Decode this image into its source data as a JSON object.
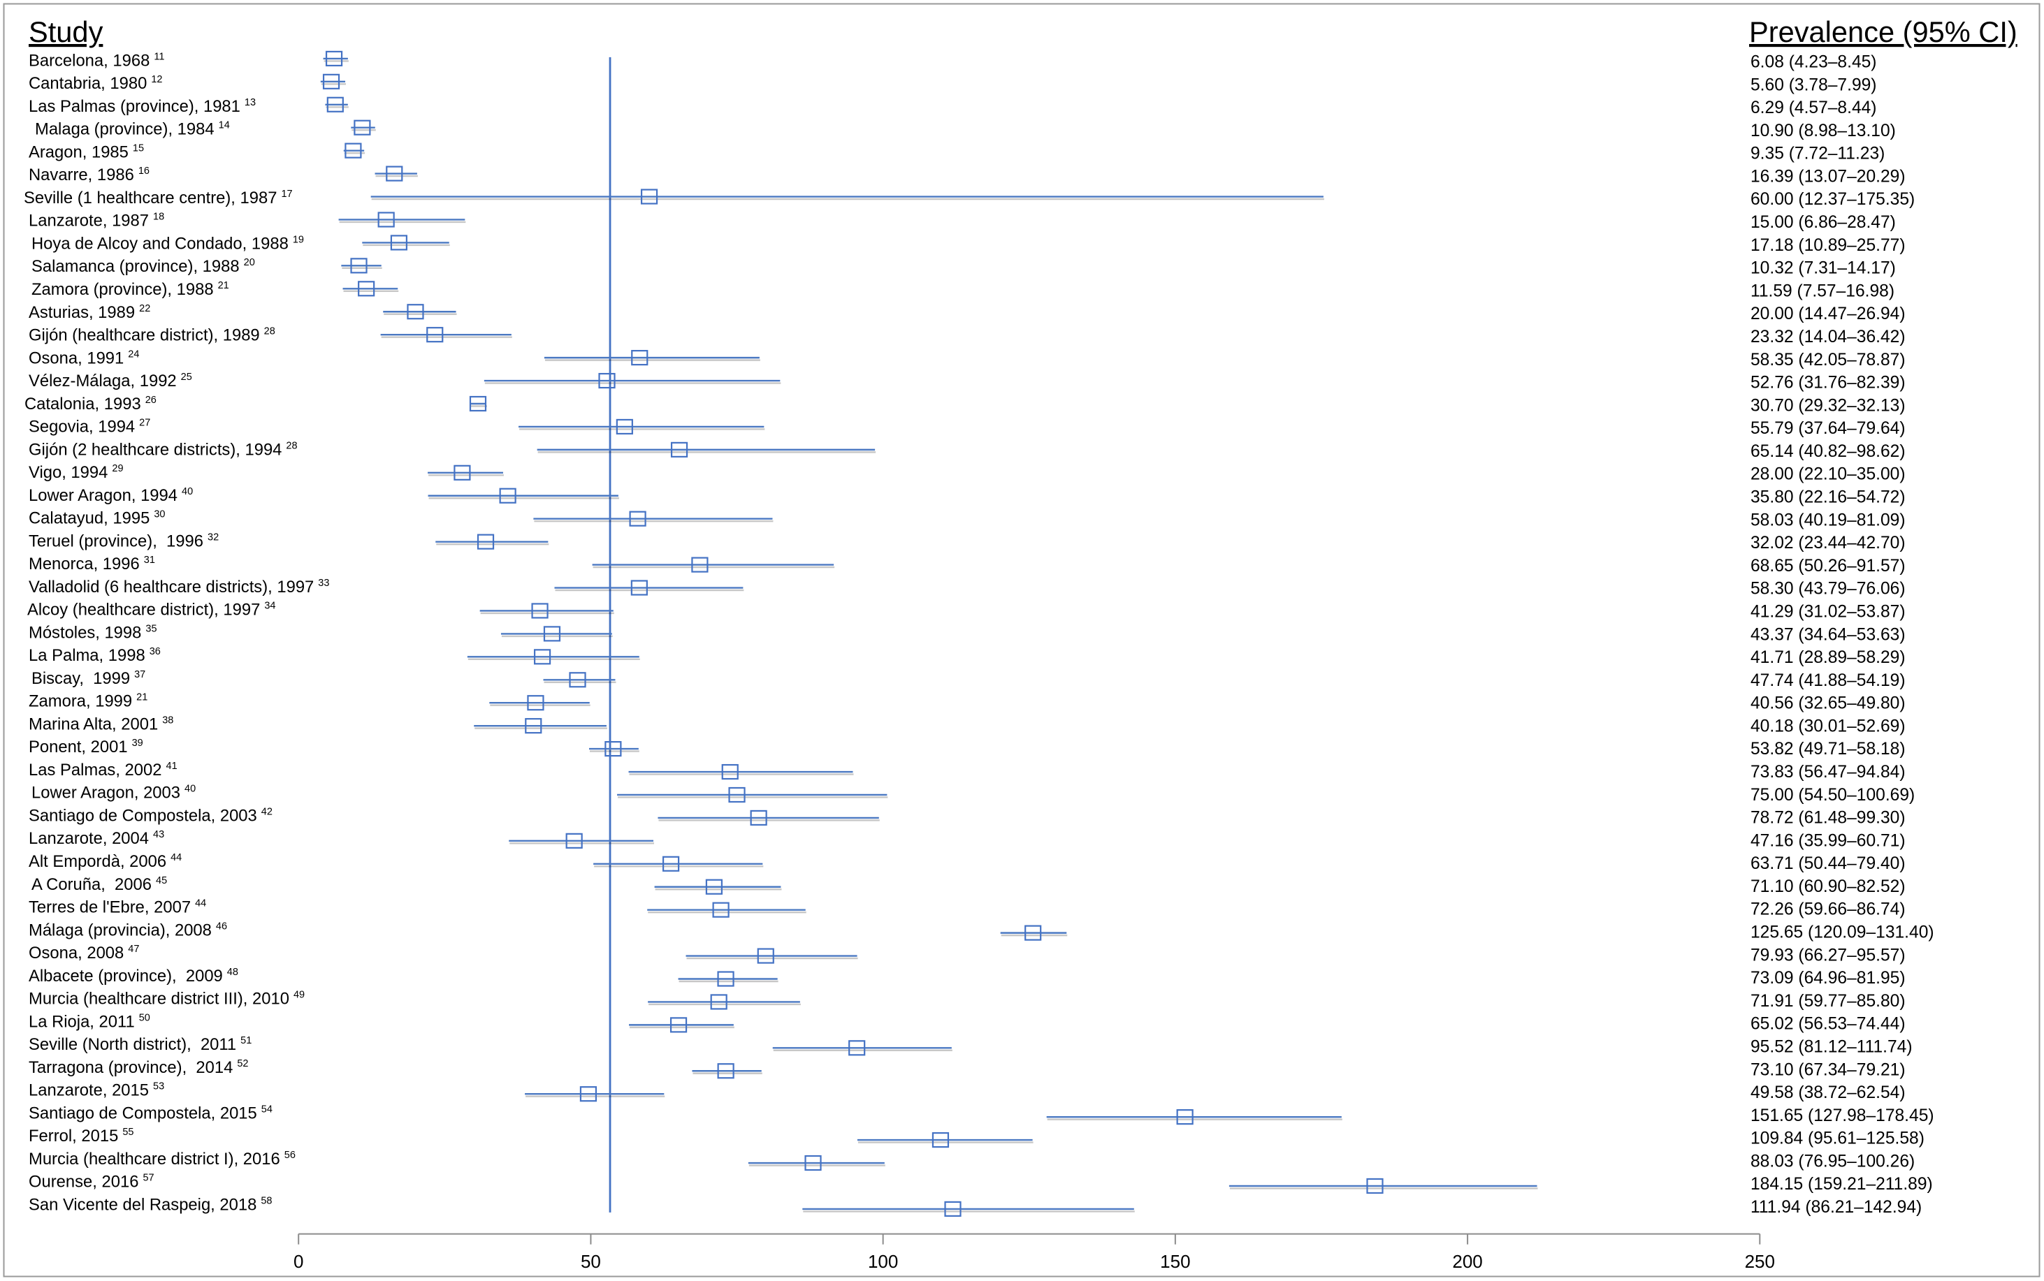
{
  "chart_data": {
    "type": "scatter",
    "column_headers": {
      "study": "Study",
      "prevalence": "Prevalence (95% CI)"
    },
    "xticks": [
      0,
      50,
      100,
      150,
      200,
      250
    ],
    "xlim": [
      0,
      250
    ],
    "reference_line": 53.3,
    "grid": false,
    "colors": {
      "marker": "#4472c4",
      "ci_line": "#4a78c2",
      "ci_shadow": "rgba(0,0,0,0.22)",
      "reference_line": "#4472c4",
      "axis": "#8c8c8c",
      "border": "#9a9a9a"
    },
    "studies": [
      {
        "label": "Barcelona, 1968",
        "ref": "11",
        "estimate": 6.08,
        "lower": 4.23,
        "upper": 8.45,
        "display": "6.08 (4.23–8.45)"
      },
      {
        "label": "Cantabria, 1980",
        "ref": "12",
        "estimate": 5.6,
        "lower": 3.78,
        "upper": 7.99,
        "display": "5.60 (3.78–7.99)"
      },
      {
        "label": "Las Palmas (province), 1981",
        "ref": "13",
        "estimate": 6.29,
        "lower": 4.57,
        "upper": 8.44,
        "display": "6.29 (4.57–8.44)"
      },
      {
        "label": "Malaga (province), 1984",
        "ref": "14",
        "estimate": 10.9,
        "lower": 8.98,
        "upper": 13.1,
        "display": "10.90 (8.98–13.10)"
      },
      {
        "label": "Aragon, 1985",
        "ref": "15",
        "estimate": 9.35,
        "lower": 7.72,
        "upper": 11.23,
        "display": "9.35 (7.72–11.23)"
      },
      {
        "label": "Navarre, 1986",
        "ref": "16",
        "estimate": 16.39,
        "lower": 13.07,
        "upper": 20.29,
        "display": "16.39 (13.07–20.29)"
      },
      {
        "label": "Seville (1 healthcare centre), 1987",
        "ref": "17",
        "estimate": 60.0,
        "lower": 12.37,
        "upper": 175.35,
        "display": "60.00 (12.37–175.35)"
      },
      {
        "label": "Lanzarote, 1987",
        "ref": "18",
        "estimate": 15.0,
        "lower": 6.86,
        "upper": 28.47,
        "display": "15.00 (6.86–28.47)"
      },
      {
        "label": "Hoya de Alcoy and Condado, 1988",
        "ref": "19",
        "estimate": 17.18,
        "lower": 10.89,
        "upper": 25.77,
        "display": "17.18 (10.89–25.77)"
      },
      {
        "label": "Salamanca (province), 1988",
        "ref": "20",
        "estimate": 10.32,
        "lower": 7.31,
        "upper": 14.17,
        "display": "10.32 (7.31–14.17)"
      },
      {
        "label": "Zamora (province), 1988",
        "ref": "21",
        "estimate": 11.59,
        "lower": 7.57,
        "upper": 16.98,
        "display": "11.59 (7.57–16.98)"
      },
      {
        "label": "Asturias, 1989",
        "ref": "22",
        "estimate": 20.0,
        "lower": 14.47,
        "upper": 26.94,
        "display": "20.00 (14.47–26.94)"
      },
      {
        "label": "Gijón (healthcare district), 1989",
        "ref": "28",
        "estimate": 23.32,
        "lower": 14.04,
        "upper": 36.42,
        "display": "23.32 (14.04–36.42)"
      },
      {
        "label": "Osona, 1991",
        "ref": "24",
        "estimate": 58.35,
        "lower": 42.05,
        "upper": 78.87,
        "display": "58.35 (42.05–78.87)"
      },
      {
        "label": "Vélez-Málaga, 1992",
        "ref": "25",
        "estimate": 52.76,
        "lower": 31.76,
        "upper": 82.39,
        "display": "52.76 (31.76–82.39)"
      },
      {
        "label": "Catalonia, 1993",
        "ref": "26",
        "estimate": 30.7,
        "lower": 29.32,
        "upper": 32.13,
        "display": "30.70 (29.32–32.13)"
      },
      {
        "label": "Segovia, 1994",
        "ref": "27",
        "estimate": 55.79,
        "lower": 37.64,
        "upper": 79.64,
        "display": "55.79 (37.64–79.64)"
      },
      {
        "label": "Gijón (2 healthcare districts), 1994",
        "ref": "28",
        "estimate": 65.14,
        "lower": 40.82,
        "upper": 98.62,
        "display": "65.14 (40.82–98.62)"
      },
      {
        "label": "Vigo, 1994",
        "ref": "29",
        "estimate": 28.0,
        "lower": 22.1,
        "upper": 35.0,
        "display": "28.00 (22.10–35.00)"
      },
      {
        "label": "Lower Aragon, 1994",
        "ref": "40",
        "estimate": 35.8,
        "lower": 22.16,
        "upper": 54.72,
        "display": "35.80 (22.16–54.72)"
      },
      {
        "label": "Calatayud, 1995",
        "ref": "30",
        "estimate": 58.03,
        "lower": 40.19,
        "upper": 81.09,
        "display": "58.03 (40.19–81.09)"
      },
      {
        "label": "Teruel (province),  1996",
        "ref": "32",
        "estimate": 32.02,
        "lower": 23.44,
        "upper": 42.7,
        "display": "32.02 (23.44–42.70)"
      },
      {
        "label": "Menorca, 1996",
        "ref": "31",
        "estimate": 68.65,
        "lower": 50.26,
        "upper": 91.57,
        "display": "68.65 (50.26–91.57)"
      },
      {
        "label": "Valladolid (6 healthcare districts), 1997",
        "ref": "33",
        "estimate": 58.3,
        "lower": 43.79,
        "upper": 76.06,
        "display": "58.30 (43.79–76.06)"
      },
      {
        "label": "Alcoy (healthcare district), 1997",
        "ref": "34",
        "estimate": 41.29,
        "lower": 31.02,
        "upper": 53.87,
        "display": "41.29 (31.02–53.87)"
      },
      {
        "label": "Móstoles, 1998",
        "ref": "35",
        "estimate": 43.37,
        "lower": 34.64,
        "upper": 53.63,
        "display": "43.37 (34.64–53.63)"
      },
      {
        "label": "La Palma, 1998",
        "ref": "36",
        "estimate": 41.71,
        "lower": 28.89,
        "upper": 58.29,
        "display": "41.71 (28.89–58.29)"
      },
      {
        "label": "Biscay,  1999",
        "ref": "37",
        "estimate": 47.74,
        "lower": 41.88,
        "upper": 54.19,
        "display": "47.74 (41.88–54.19)"
      },
      {
        "label": "Zamora, 1999",
        "ref": "21",
        "estimate": 40.56,
        "lower": 32.65,
        "upper": 49.8,
        "display": "40.56 (32.65–49.80)"
      },
      {
        "label": "Marina Alta, 2001",
        "ref": "38",
        "estimate": 40.18,
        "lower": 30.01,
        "upper": 52.69,
        "display": "40.18 (30.01–52.69)"
      },
      {
        "label": "Ponent, 2001",
        "ref": "39",
        "estimate": 53.82,
        "lower": 49.71,
        "upper": 58.18,
        "display": "53.82 (49.71–58.18)"
      },
      {
        "label": "Las Palmas, 2002",
        "ref": "41",
        "estimate": 73.83,
        "lower": 56.47,
        "upper": 94.84,
        "display": "73.83 (56.47–94.84)"
      },
      {
        "label": "Lower Aragon, 2003",
        "ref": "40",
        "estimate": 75.0,
        "lower": 54.5,
        "upper": 100.69,
        "display": "75.00 (54.50–100.69)"
      },
      {
        "label": "Santiago de Compostela, 2003",
        "ref": "42",
        "estimate": 78.72,
        "lower": 61.48,
        "upper": 99.3,
        "display": "78.72 (61.48–99.30)"
      },
      {
        "label": "Lanzarote, 2004",
        "ref": "43",
        "estimate": 47.16,
        "lower": 35.99,
        "upper": 60.71,
        "display": "47.16 (35.99–60.71)"
      },
      {
        "label": "Alt Empordà, 2006",
        "ref": "44",
        "estimate": 63.71,
        "lower": 50.44,
        "upper": 79.4,
        "display": "63.71 (50.44–79.40)"
      },
      {
        "label": "A Coruña,  2006",
        "ref": "45",
        "estimate": 71.1,
        "lower": 60.9,
        "upper": 82.52,
        "display": "71.10 (60.90–82.52)"
      },
      {
        "label": "Terres de l'Ebre, 2007",
        "ref": "44",
        "estimate": 72.26,
        "lower": 59.66,
        "upper": 86.74,
        "display": "72.26 (59.66–86.74)"
      },
      {
        "label": "Málaga (provincia), 2008",
        "ref": "46",
        "estimate": 125.65,
        "lower": 120.09,
        "upper": 131.4,
        "display": "125.65 (120.09–131.40)"
      },
      {
        "label": "Osona, 2008",
        "ref": "47",
        "estimate": 79.93,
        "lower": 66.27,
        "upper": 95.57,
        "display": "79.93 (66.27–95.57)"
      },
      {
        "label": "Albacete (province),  2009",
        "ref": "48",
        "estimate": 73.09,
        "lower": 64.96,
        "upper": 81.95,
        "display": "73.09 (64.96–81.95)"
      },
      {
        "label": "Murcia (healthcare district III), 2010",
        "ref": "49",
        "estimate": 71.91,
        "lower": 59.77,
        "upper": 85.8,
        "display": "71.91 (59.77–85.80)"
      },
      {
        "label": "La Rioja, 2011",
        "ref": "50",
        "estimate": 65.02,
        "lower": 56.53,
        "upper": 74.44,
        "display": "65.02 (56.53–74.44)"
      },
      {
        "label": "Seville (North district),  2011",
        "ref": "51",
        "estimate": 95.52,
        "lower": 81.12,
        "upper": 111.74,
        "display": "95.52 (81.12–111.74)"
      },
      {
        "label": "Tarragona (province),  2014",
        "ref": "52",
        "estimate": 73.1,
        "lower": 67.34,
        "upper": 79.21,
        "display": "73.10 (67.34–79.21)"
      },
      {
        "label": "Lanzarote, 2015",
        "ref": "53",
        "estimate": 49.58,
        "lower": 38.72,
        "upper": 62.54,
        "display": "49.58 (38.72–62.54)"
      },
      {
        "label": "Santiago de Compostela, 2015",
        "ref": "54",
        "estimate": 151.65,
        "lower": 127.98,
        "upper": 178.45,
        "display": "151.65 (127.98–178.45)"
      },
      {
        "label": "Ferrol, 2015",
        "ref": "55",
        "estimate": 109.84,
        "lower": 95.61,
        "upper": 125.58,
        "display": "109.84 (95.61–125.58)"
      },
      {
        "label": "Murcia (healthcare district I), 2016",
        "ref": "56",
        "estimate": 88.03,
        "lower": 76.95,
        "upper": 100.26,
        "display": "88.03 (76.95–100.26)"
      },
      {
        "label": "Ourense, 2016",
        "ref": "57",
        "estimate": 184.15,
        "lower": 159.21,
        "upper": 211.89,
        "display": "184.15 (159.21–211.89)"
      },
      {
        "label": "San Vicente del Raspeig, 2018",
        "ref": "58",
        "estimate": 111.94,
        "lower": 86.21,
        "upper": 142.94,
        "display": "111.94 (86.21–142.94)"
      }
    ]
  }
}
